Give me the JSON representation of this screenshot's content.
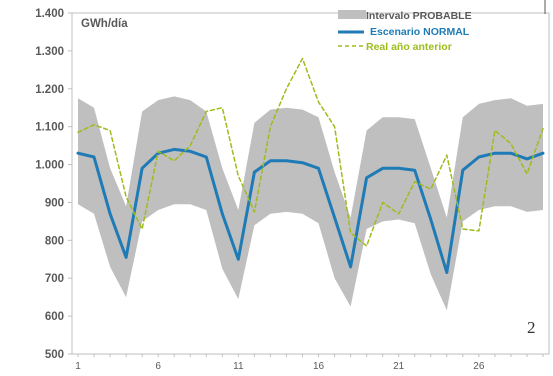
{
  "chart_data": {
    "type": "line",
    "unit_label": "GWh/día",
    "page_number": "2",
    "ylim": [
      500,
      1400
    ],
    "xlim": [
      1,
      30
    ],
    "y_ticks": [
      "500",
      "600",
      "700",
      "800",
      "900",
      "1.000",
      "1.100",
      "1.200",
      "1.300",
      "1.400"
    ],
    "y_tick_values": [
      500,
      600,
      700,
      800,
      900,
      1000,
      1100,
      1200,
      1300,
      1400
    ],
    "x_ticks": [
      "1",
      "6",
      "11",
      "16",
      "21",
      "26"
    ],
    "x_tick_values": [
      1,
      6,
      11,
      16,
      21,
      26
    ],
    "x": [
      1,
      2,
      3,
      4,
      5,
      6,
      7,
      8,
      9,
      10,
      11,
      12,
      13,
      14,
      15,
      16,
      17,
      18,
      19,
      20,
      21,
      22,
      23,
      24,
      25,
      26,
      27,
      28,
      29,
      30
    ],
    "legend": {
      "band": "Intervalo PROBABLE",
      "normal": "Escenario NORMAL",
      "previous": "Real año anterior"
    },
    "band": {
      "name": "Intervalo PROBABLE",
      "upper": [
        1175,
        1150,
        990,
        890,
        1140,
        1170,
        1180,
        1170,
        1140,
        990,
        880,
        1110,
        1145,
        1150,
        1145,
        1125,
        980,
        860,
        1090,
        1125,
        1125,
        1120,
        990,
        860,
        1125,
        1160,
        1170,
        1175,
        1155,
        1160
      ],
      "lower": [
        895,
        870,
        730,
        650,
        850,
        880,
        895,
        895,
        880,
        725,
        645,
        840,
        870,
        875,
        870,
        845,
        700,
        625,
        830,
        850,
        855,
        845,
        710,
        615,
        850,
        880,
        890,
        890,
        875,
        880
      ]
    },
    "series": [
      {
        "name": "Escenario NORMAL",
        "color": "#1f7bb6",
        "values": [
          1030,
          1020,
          870,
          755,
          990,
          1030,
          1040,
          1035,
          1020,
          870,
          750,
          980,
          1010,
          1010,
          1005,
          990,
          860,
          730,
          965,
          990,
          990,
          985,
          855,
          715,
          985,
          1020,
          1030,
          1030,
          1015,
          1030
        ]
      },
      {
        "name": "Real año anterior",
        "color": "#9dbd1b",
        "values": [
          1085,
          1105,
          1090,
          915,
          830,
          1035,
          1010,
          1050,
          1140,
          1150,
          970,
          875,
          1100,
          1200,
          1280,
          1165,
          1100,
          820,
          785,
          900,
          870,
          955,
          935,
          1025,
          830,
          825,
          1090,
          1055,
          975,
          1095
        ]
      }
    ],
    "colors": {
      "band": "#bfbfbf",
      "normal": "#1f7bb6",
      "previous": "#9dbd1b",
      "axis": "#bfbfbf",
      "text": "#595959"
    }
  }
}
